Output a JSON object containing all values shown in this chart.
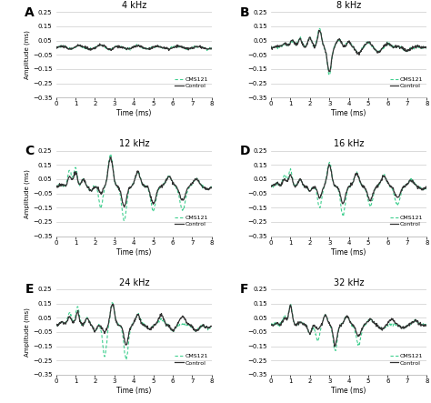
{
  "panels": [
    {
      "label": "A",
      "title": "4 kHz",
      "freq": 4
    },
    {
      "label": "B",
      "title": "8 kHz",
      "freq": 8
    },
    {
      "label": "C",
      "title": "12 kHz",
      "freq": 12
    },
    {
      "label": "D",
      "title": "16 kHz",
      "freq": 16
    },
    {
      "label": "E",
      "title": "24 kHz",
      "freq": 24
    },
    {
      "label": "F",
      "title": "32 kHz",
      "freq": 32
    }
  ],
  "ylim": [
    -0.35,
    0.25
  ],
  "xlim": [
    0,
    8
  ],
  "yticks": [
    -0.35,
    -0.25,
    -0.15,
    -0.05,
    0.05,
    0.15,
    0.25
  ],
  "xticks": [
    0,
    1,
    2,
    3,
    4,
    5,
    6,
    7,
    8
  ],
  "xlabel": "Time (ms)",
  "ylabel": "Amplitude (ms)",
  "cms121_color": "#3ecf8e",
  "control_color": "#333333",
  "bg_color": "#ffffff",
  "grid_color": "#cccccc",
  "legend_cms121": "CMS121",
  "legend_control": "Control",
  "figsize": [
    4.74,
    4.43
  ],
  "dpi": 100
}
